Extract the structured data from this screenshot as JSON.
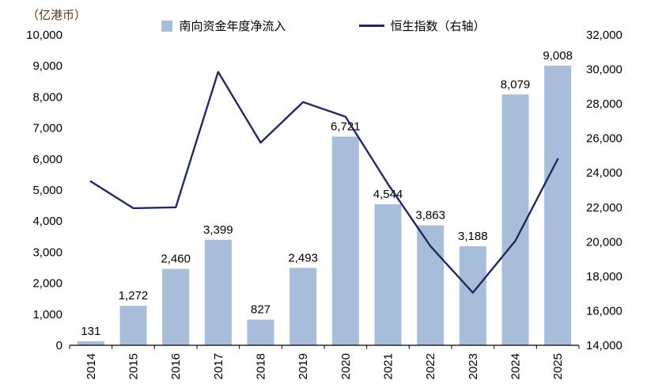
{
  "chart": {
    "unit_label": "（亿港币）",
    "legend": [
      {
        "label": "南向资金年度净流入",
        "type": "bar"
      },
      {
        "label": "恒生指数（右轴）",
        "type": "line"
      }
    ],
    "colors": {
      "bar": "#a8bdd9",
      "line": "#222a60",
      "axis": "#000000",
      "text": "#000000",
      "unit_label": "#54381e"
    }
  },
  "chart_data": {
    "type": "combo-bar-line",
    "title": "",
    "ylabel_left": "（亿港币）",
    "grid": false,
    "legend_position": "top-center",
    "categories": [
      "2014",
      "2015",
      "2016",
      "2017",
      "2018",
      "2019",
      "2020",
      "2021",
      "2022",
      "2023",
      "2024",
      "2025"
    ],
    "series": [
      {
        "name": "南向资金年度净流入",
        "type": "bar",
        "axis": "left",
        "color": "#a8bdd9",
        "values": [
          131,
          1272,
          2460,
          3399,
          827,
          2493,
          6721,
          4544,
          3863,
          3188,
          8079,
          9008
        ],
        "labels": [
          "131",
          "1,272",
          "2,460",
          "3,399",
          "827",
          "2,493",
          "6,721",
          "4,544",
          "3,863",
          "3,188",
          "8,079",
          "9,008"
        ]
      },
      {
        "name": "恒生指数（右轴）",
        "type": "line",
        "axis": "right",
        "color": "#222a60",
        "values": [
          23500,
          21950,
          22000,
          29850,
          25750,
          28100,
          27250,
          23350,
          19750,
          17050,
          20050,
          24800
        ]
      }
    ],
    "left_axis": {
      "min": 0,
      "max": 10000,
      "step": 1000,
      "ticks": [
        "0",
        "1,000",
        "2,000",
        "3,000",
        "4,000",
        "5,000",
        "6,000",
        "7,000",
        "8,000",
        "9,000",
        "10,000"
      ]
    },
    "right_axis": {
      "min": 14000,
      "max": 32000,
      "step": 2000,
      "ticks": [
        "14,000",
        "16,000",
        "18,000",
        "20,000",
        "22,000",
        "24,000",
        "26,000",
        "28,000",
        "30,000",
        "32,000"
      ]
    }
  }
}
